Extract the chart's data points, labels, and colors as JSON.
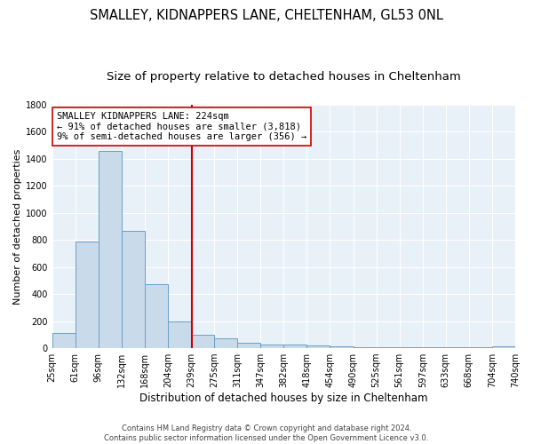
{
  "title": "SMALLEY, KIDNAPPERS LANE, CHELTENHAM, GL53 0NL",
  "subtitle": "Size of property relative to detached houses in Cheltenham",
  "xlabel": "Distribution of detached houses by size in Cheltenham",
  "ylabel": "Number of detached properties",
  "footnote": "Contains HM Land Registry data © Crown copyright and database right 2024.\nContains public sector information licensed under the Open Government Licence v3.0.",
  "bin_labels": [
    "25sqm",
    "61sqm",
    "96sqm",
    "132sqm",
    "168sqm",
    "204sqm",
    "239sqm",
    "275sqm",
    "311sqm",
    "347sqm",
    "382sqm",
    "418sqm",
    "454sqm",
    "490sqm",
    "525sqm",
    "561sqm",
    "597sqm",
    "633sqm",
    "668sqm",
    "704sqm",
    "740sqm"
  ],
  "bar_heights": [
    110,
    790,
    1460,
    870,
    470,
    200,
    100,
    70,
    40,
    30,
    25,
    20,
    15,
    10,
    8,
    5,
    5,
    5,
    5,
    15
  ],
  "bar_facecolor": "#c9daea",
  "bar_edgecolor": "#6aa0c8",
  "property_size_bin": 6,
  "vline_color": "#cc0000",
  "ylim": [
    0,
    1800
  ],
  "yticks": [
    0,
    200,
    400,
    600,
    800,
    1000,
    1200,
    1400,
    1600,
    1800
  ],
  "annotation_text": "SMALLEY KIDNAPPERS LANE: 224sqm\n← 91% of detached houses are smaller (3,818)\n9% of semi-detached houses are larger (356) →",
  "annotation_box_facecolor": "#ffffff",
  "annotation_box_edgecolor": "#cc0000",
  "background_color": "#e8f0f8",
  "grid_color": "#ffffff",
  "title_fontsize": 10.5,
  "subtitle_fontsize": 9.5,
  "xlabel_fontsize": 8.5,
  "ylabel_fontsize": 8,
  "tick_fontsize": 7,
  "annotation_fontsize": 7.5,
  "footnote_fontsize": 6
}
